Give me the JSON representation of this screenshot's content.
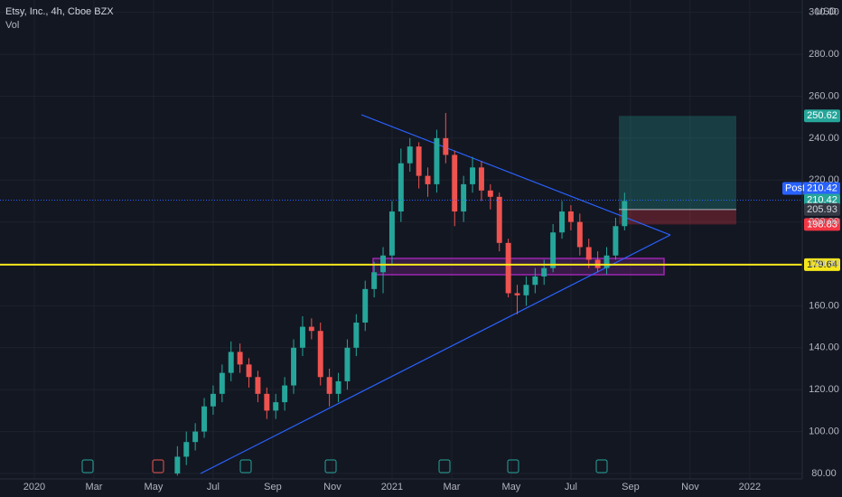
{
  "chart_data": {
    "type": "candlestick",
    "title": "Etsy, Inc., 4h, Cboe BZX",
    "subtitle": "Vol",
    "currency": "USD",
    "x": [
      4.8,
      5.1,
      5.4,
      5.7,
      6.0,
      6.3,
      6.6,
      6.9,
      7.2,
      7.5,
      7.8,
      8.1,
      8.4,
      8.7,
      9.0,
      9.3,
      9.6,
      9.9,
      10.2,
      10.5,
      10.8,
      11.1,
      11.4,
      11.7,
      12.0,
      12.3,
      12.6,
      12.9,
      13.2,
      13.5,
      13.8,
      14.1,
      14.4,
      14.7,
      15.0,
      15.3,
      15.6,
      15.9,
      16.2,
      16.5,
      16.8,
      17.1,
      17.4,
      17.7,
      18.0,
      18.3,
      18.6,
      18.9,
      19.2,
      19.5,
      19.8
    ],
    "open": [
      80,
      88,
      95,
      100,
      112,
      118,
      128,
      138,
      132,
      126,
      118,
      110,
      114,
      122,
      140,
      150,
      148,
      126,
      118,
      124,
      140,
      152,
      168,
      176,
      184,
      205,
      228,
      236,
      222,
      218,
      240,
      232,
      205,
      218,
      226,
      215,
      212,
      190,
      166,
      165,
      170,
      174,
      178,
      195,
      205,
      200,
      188,
      182,
      178,
      184,
      198
    ],
    "high": [
      93,
      100,
      104,
      116,
      122,
      132,
      143,
      142,
      135,
      129,
      121,
      118,
      126,
      144,
      155,
      154,
      152,
      130,
      128,
      144,
      156,
      172,
      181,
      188,
      210,
      235,
      240,
      238,
      226,
      244,
      252,
      234,
      222,
      231,
      229,
      218,
      214,
      192,
      170,
      174,
      178,
      182,
      199,
      210,
      208,
      204,
      192,
      186,
      188,
      202,
      214
    ],
    "low": [
      79,
      84,
      91,
      97,
      108,
      114,
      124,
      128,
      121,
      114,
      106,
      106,
      110,
      118,
      136,
      144,
      122,
      112,
      114,
      120,
      136,
      148,
      164,
      166,
      180,
      200,
      224,
      216,
      212,
      214,
      228,
      198,
      200,
      214,
      210,
      206,
      186,
      164,
      156,
      160,
      166,
      170,
      176,
      192,
      196,
      184,
      178,
      176,
      175,
      182,
      196
    ],
    "close": [
      88,
      95,
      100,
      112,
      118,
      128,
      138,
      132,
      126,
      118,
      110,
      114,
      122,
      140,
      150,
      148,
      126,
      118,
      124,
      140,
      152,
      168,
      176,
      184,
      205,
      228,
      236,
      222,
      218,
      240,
      232,
      205,
      218,
      226,
      215,
      212,
      190,
      166,
      165,
      170,
      174,
      178,
      195,
      205,
      200,
      188,
      182,
      178,
      184,
      198,
      210
    ],
    "up_color": "#26a69a",
    "down_color": "#ef5350",
    "xlim": [
      -1.15,
      25.76
    ],
    "xticks": [
      {
        "value": 0,
        "label": "2020"
      },
      {
        "value": 2,
        "label": "Mar"
      },
      {
        "value": 4,
        "label": "May"
      },
      {
        "value": 6,
        "label": "Jul"
      },
      {
        "value": 8,
        "label": "Sep"
      },
      {
        "value": 10,
        "label": "Nov"
      },
      {
        "value": 12,
        "label": "2021"
      },
      {
        "value": 14,
        "label": "Mar"
      },
      {
        "value": 16,
        "label": "May"
      },
      {
        "value": 18,
        "label": "Jul"
      },
      {
        "value": 20,
        "label": "Sep"
      },
      {
        "value": 22,
        "label": "Nov"
      },
      {
        "value": 24,
        "label": "2022"
      }
    ],
    "ylim": [
      77.4,
      305.9
    ],
    "yticks": [
      {
        "value": 80,
        "label": "80.00"
      },
      {
        "value": 100,
        "label": "100.00"
      },
      {
        "value": 120,
        "label": "120.00"
      },
      {
        "value": 140,
        "label": "140.00"
      },
      {
        "value": 160,
        "label": "160.00"
      },
      {
        "value": 180,
        "label": "180.00"
      },
      {
        "value": 200,
        "label": "200.00"
      },
      {
        "value": 220,
        "label": "220.00"
      },
      {
        "value": 240,
        "label": "240.00"
      },
      {
        "value": 260,
        "label": "260.00"
      },
      {
        "value": 280,
        "label": "280.00"
      },
      {
        "value": 300,
        "label": "300.00"
      }
    ],
    "grid": true,
    "levels": [
      {
        "value": 250.62,
        "color": "#26a69a"
      },
      {
        "value": 210.42,
        "color": "#2962ff",
        "tag": "Post"
      },
      {
        "value": 210.42,
        "color": "#26a69a"
      },
      {
        "value": 205.93,
        "color": "#b2b5be"
      },
      {
        "value": 198.83,
        "color": "#f23645"
      },
      {
        "value": 179.64,
        "color": "#f5e61b"
      }
    ]
  }
}
